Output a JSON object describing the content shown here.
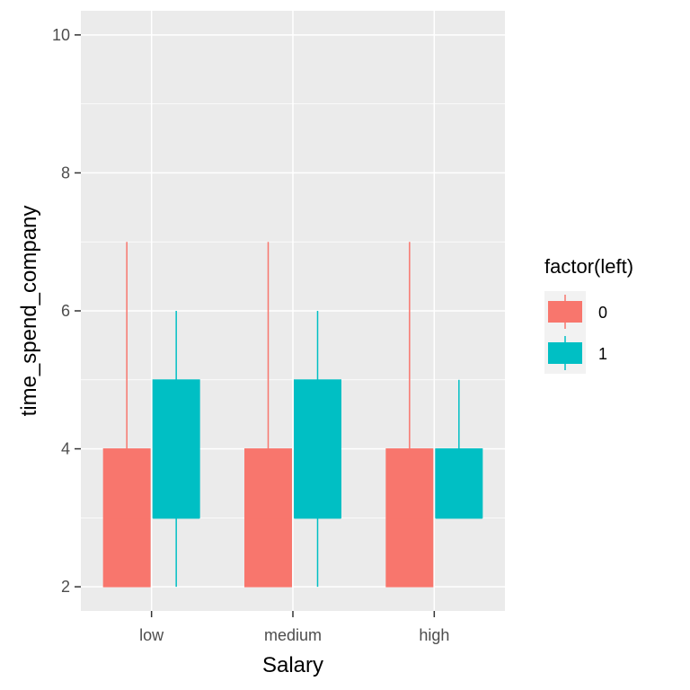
{
  "chart_data": {
    "type": "boxplot",
    "title": "",
    "xlabel": "Salary",
    "ylabel": "time_spend_company",
    "ylim": [
      1.65,
      10.35
    ],
    "yticks": [
      2,
      4,
      6,
      8,
      10
    ],
    "categories": [
      "low",
      "medium",
      "high"
    ],
    "grid": true,
    "legend": {
      "title": "factor(left)",
      "position": "right",
      "entries": [
        "0",
        "1"
      ]
    },
    "series": [
      {
        "name": "0",
        "color": "#F8766D",
        "boxes": [
          {
            "category": "low",
            "whisker_low": 2,
            "q1": 2,
            "median": 3,
            "q3": 4,
            "whisker_high": 7
          },
          {
            "category": "medium",
            "whisker_low": 2,
            "q1": 2,
            "median": 3,
            "q3": 4,
            "whisker_high": 7
          },
          {
            "category": "high",
            "whisker_low": 2,
            "q1": 2,
            "median": 3,
            "q3": 4,
            "whisker_high": 7
          }
        ]
      },
      {
        "name": "1",
        "color": "#00BFC4",
        "boxes": [
          {
            "category": "low",
            "whisker_low": 2,
            "q1": 3,
            "median": 3,
            "q3": 5,
            "whisker_high": 6
          },
          {
            "category": "medium",
            "whisker_low": 2,
            "q1": 3,
            "median": 3,
            "q3": 5,
            "whisker_high": 6
          },
          {
            "category": "high",
            "whisker_low": 3,
            "q1": 3,
            "median": 3,
            "q3": 4,
            "whisker_high": 5
          }
        ]
      }
    ],
    "colors": {
      "panel_bg": "#EBEBEB",
      "grid": "#FFFFFF"
    }
  }
}
